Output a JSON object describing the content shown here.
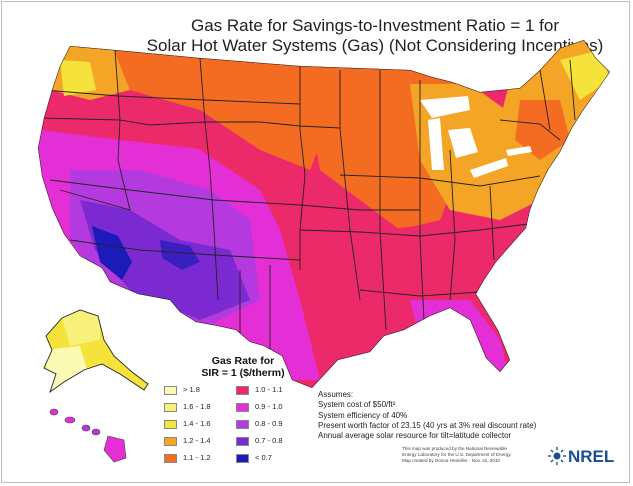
{
  "title": {
    "line1": "Gas Rate for Savings-to-Investment Ratio = 1 for",
    "line2": "Solar Hot Water Systems (Gas) (Not Considering Incentives)"
  },
  "legend": {
    "title_line1": "Gas Rate for",
    "title_line2": "SIR = 1  ($/therm)",
    "items": [
      {
        "label": "> 1.8",
        "color": "#fafab4"
      },
      {
        "label": "1.6 - 1.8",
        "color": "#f7f07a"
      },
      {
        "label": "1.4 - 1.6",
        "color": "#f5e23a"
      },
      {
        "label": "1.2 - 1.4",
        "color": "#f4a526"
      },
      {
        "label": "1.1 - 1.2",
        "color": "#f46c22"
      },
      {
        "label": "1.0 - 1.1",
        "color": "#ec2a6a"
      },
      {
        "label": "0.9 - 1.0",
        "color": "#e52fd6"
      },
      {
        "label": "0.8 - 0.9",
        "color": "#b43ae0"
      },
      {
        "label": "0.7 - 0.8",
        "color": "#7a2ad0"
      },
      {
        "label": "< 0.7",
        "color": "#1c1ab8"
      }
    ]
  },
  "assumptions": {
    "heading": "Assumes:",
    "cost": "System cost of $50/ft²",
    "efficiency": "System efficiency of 40%",
    "worth": "Present worth factor of 23.15 (40 yrs at 3% real discount rate)",
    "resource": "Annual average solar resource for tilt=latitude collector"
  },
  "credit": {
    "line1": "This map was produced by the National Renewable",
    "line2": "Energy Laboratory for the U.S. Department of Energy.",
    "line3": "Map created by Donna Heimiller - Nov. 22, 2010"
  },
  "logo": {
    "text": "NREL",
    "color": "#1a4f8f"
  },
  "map_regions": {
    "water": "#ffffff",
    "state_borders": "#222222"
  }
}
